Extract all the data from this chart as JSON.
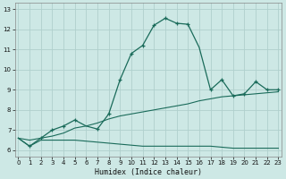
{
  "xlabel": "Humidex (Indice chaleur)",
  "bg_color": "#cde8e5",
  "grid_color": "#b0d0cd",
  "line_color": "#1a6b5a",
  "x_ticks": [
    0,
    1,
    2,
    3,
    4,
    5,
    6,
    7,
    8,
    9,
    10,
    11,
    12,
    13,
    14,
    15,
    16,
    17,
    18,
    19,
    20,
    21,
    22,
    23
  ],
  "y_ticks": [
    6,
    7,
    8,
    9,
    10,
    11,
    12,
    13
  ],
  "ylim": [
    5.7,
    13.3
  ],
  "xlim": [
    -0.3,
    23.3
  ],
  "line1_x": [
    0,
    1,
    2,
    3,
    4,
    5,
    6,
    7,
    8,
    9,
    10,
    11,
    12,
    13,
    14,
    15,
    16,
    17,
    18,
    19,
    20,
    21,
    22,
    23
  ],
  "line1_y": [
    6.6,
    6.2,
    6.5,
    6.5,
    6.5,
    6.5,
    6.45,
    6.4,
    6.35,
    6.3,
    6.25,
    6.2,
    6.2,
    6.2,
    6.2,
    6.2,
    6.2,
    6.2,
    6.15,
    6.1,
    6.1,
    6.1,
    6.1,
    6.1
  ],
  "line2_x": [
    0,
    1,
    2,
    3,
    4,
    5,
    6,
    7,
    8,
    9,
    10,
    11,
    12,
    13,
    14,
    15,
    16,
    17,
    18,
    19,
    20,
    21,
    22,
    23
  ],
  "line2_y": [
    6.6,
    6.5,
    6.6,
    6.7,
    6.85,
    7.1,
    7.2,
    7.35,
    7.55,
    7.7,
    7.8,
    7.9,
    8.0,
    8.1,
    8.2,
    8.3,
    8.45,
    8.55,
    8.65,
    8.7,
    8.75,
    8.8,
    8.85,
    8.9
  ],
  "line3_x": [
    0,
    1,
    2,
    3,
    4,
    5,
    6,
    7,
    8,
    9,
    10,
    11,
    12,
    13,
    14,
    15,
    16,
    17,
    18,
    19,
    20,
    21,
    22,
    23
  ],
  "line3_y": [
    6.6,
    6.2,
    6.6,
    7.0,
    7.2,
    7.5,
    7.2,
    7.05,
    7.8,
    9.5,
    10.8,
    11.2,
    12.2,
    12.55,
    12.3,
    12.25,
    11.1,
    9.0,
    9.5,
    8.7,
    8.8,
    9.4,
    9.0,
    9.0
  ],
  "marker3_x": [
    1,
    2,
    3,
    4,
    5,
    7,
    8,
    9,
    10,
    11,
    12,
    13,
    14,
    15,
    17,
    18,
    19,
    20,
    21,
    22,
    23
  ],
  "marker3_y": [
    6.2,
    6.6,
    7.0,
    7.2,
    7.5,
    7.05,
    7.8,
    9.5,
    10.8,
    11.2,
    12.2,
    12.55,
    12.3,
    12.25,
    9.0,
    9.5,
    8.7,
    8.8,
    9.4,
    9.0,
    9.0
  ]
}
